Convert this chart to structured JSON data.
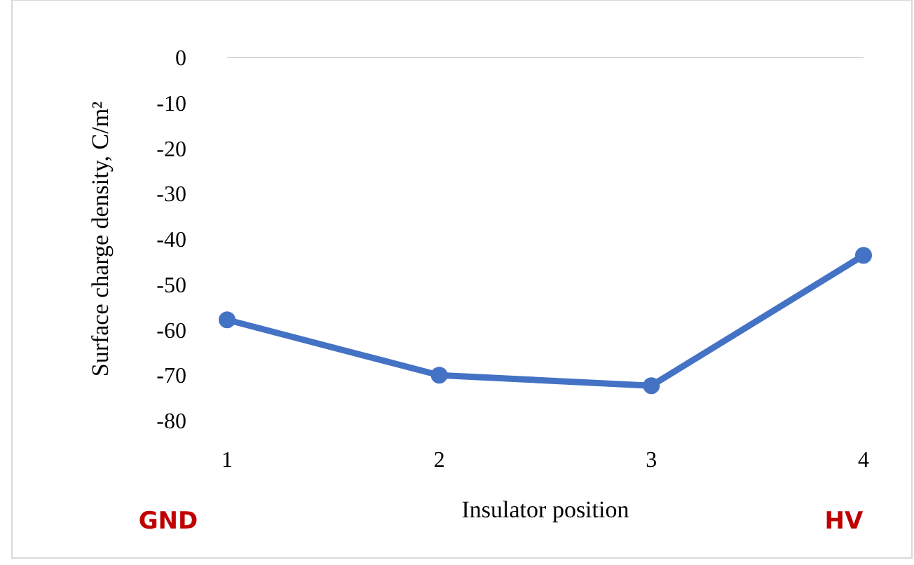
{
  "chart_data": {
    "type": "line",
    "xlabel": "Insulator position",
    "ylabel": "Surface charge density, C/m²",
    "categories": [
      "1",
      "2",
      "3",
      "4"
    ],
    "series": [
      {
        "color": "#4472c4",
        "values": [
          -57.8,
          -70,
          -72.3,
          -43.6
        ]
      }
    ],
    "ylim": [
      -80,
      0
    ],
    "yticks": [
      -80,
      -70,
      -60,
      -50,
      -40,
      -30,
      -20,
      -10,
      0
    ],
    "marker": "circle",
    "line_style": "solid",
    "annotations": [
      "GND",
      "HV"
    ]
  }
}
